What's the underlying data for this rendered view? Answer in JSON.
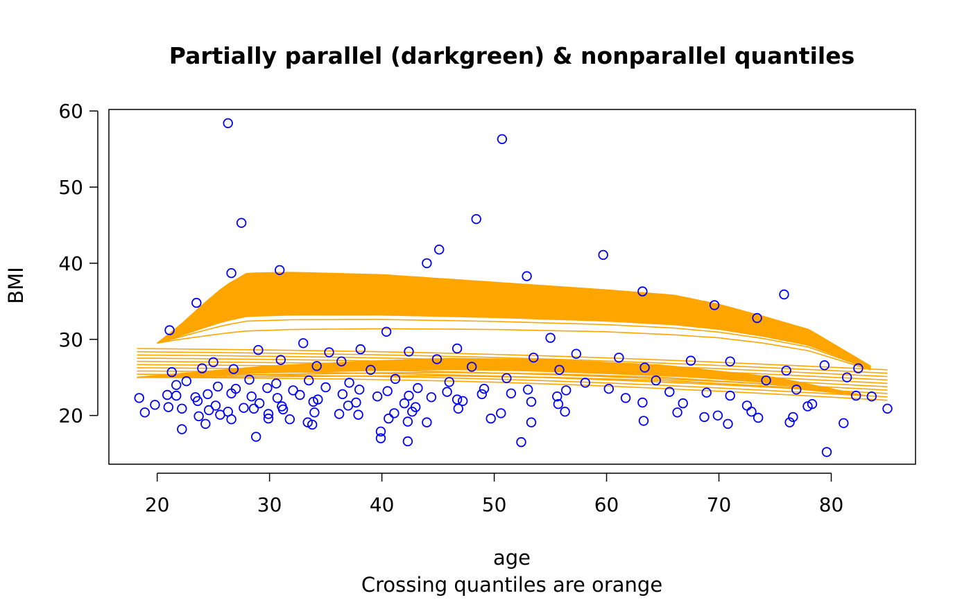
{
  "chart_data": {
    "type": "scatter",
    "title": "Partially parallel (darkgreen) & nonparallel quantiles",
    "xlabel": "age",
    "subtitle": "Crossing quantiles are orange",
    "ylabel": "BMI",
    "xlim": [
      15.7,
      87.5
    ],
    "ylim": [
      13.6,
      60.2
    ],
    "x_ticks": [
      20,
      30,
      40,
      50,
      60,
      70,
      80
    ],
    "y_ticks": [
      20,
      30,
      40,
      50,
      60
    ],
    "points_color": "#0000ff",
    "quantile_color": "#ffa500",
    "points": [
      [
        26.3,
        58.4
      ],
      [
        50.7,
        56.3
      ],
      [
        27.5,
        45.3
      ],
      [
        48.4,
        45.8
      ],
      [
        45.1,
        41.8
      ],
      [
        59.7,
        41.1
      ],
      [
        44.0,
        40.0
      ],
      [
        30.9,
        39.1
      ],
      [
        26.6,
        38.7
      ],
      [
        52.9,
        38.3
      ],
      [
        63.2,
        36.3
      ],
      [
        75.8,
        35.9
      ],
      [
        23.5,
        34.8
      ],
      [
        69.6,
        34.5
      ],
      [
        73.4,
        32.8
      ],
      [
        21.1,
        31.2
      ],
      [
        40.4,
        31.0
      ],
      [
        55.0,
        30.2
      ],
      [
        33.0,
        29.5
      ],
      [
        46.7,
        28.8
      ],
      [
        29.0,
        28.6
      ],
      [
        35.3,
        28.3
      ],
      [
        38.1,
        28.7
      ],
      [
        42.4,
        28.4
      ],
      [
        57.3,
        28.1
      ],
      [
        61.1,
        27.6
      ],
      [
        67.5,
        27.2
      ],
      [
        25.0,
        27.0
      ],
      [
        31.0,
        27.3
      ],
      [
        36.4,
        27.1
      ],
      [
        44.9,
        27.4
      ],
      [
        53.5,
        27.6
      ],
      [
        71.0,
        27.1
      ],
      [
        79.4,
        26.6
      ],
      [
        82.4,
        26.2
      ],
      [
        24.0,
        26.2
      ],
      [
        26.8,
        26.1
      ],
      [
        34.2,
        26.5
      ],
      [
        39.0,
        26.0
      ],
      [
        48.0,
        26.4
      ],
      [
        55.8,
        26.0
      ],
      [
        63.4,
        26.3
      ],
      [
        76.0,
        25.9
      ],
      [
        21.3,
        25.7
      ],
      [
        22.6,
        24.5
      ],
      [
        28.2,
        24.7
      ],
      [
        30.6,
        24.2
      ],
      [
        33.5,
        24.6
      ],
      [
        37.1,
        24.3
      ],
      [
        41.2,
        24.8
      ],
      [
        46.0,
        24.4
      ],
      [
        51.1,
        24.9
      ],
      [
        58.1,
        24.3
      ],
      [
        64.4,
        24.6
      ],
      [
        74.2,
        24.6
      ],
      [
        81.4,
        25.0
      ],
      [
        21.7,
        24.0
      ],
      [
        25.4,
        23.8
      ],
      [
        27.0,
        23.5
      ],
      [
        29.8,
        23.6
      ],
      [
        32.1,
        23.3
      ],
      [
        35.0,
        23.7
      ],
      [
        38.0,
        23.4
      ],
      [
        40.5,
        23.2
      ],
      [
        43.2,
        23.6
      ],
      [
        45.8,
        23.1
      ],
      [
        49.1,
        23.5
      ],
      [
        53.0,
        23.4
      ],
      [
        56.4,
        23.3
      ],
      [
        60.2,
        23.5
      ],
      [
        65.6,
        23.1
      ],
      [
        68.9,
        23.0
      ],
      [
        76.9,
        23.4
      ],
      [
        18.4,
        22.3
      ],
      [
        20.9,
        22.7
      ],
      [
        21.7,
        22.6
      ],
      [
        23.4,
        22.4
      ],
      [
        24.5,
        22.8
      ],
      [
        26.6,
        22.9
      ],
      [
        28.4,
        22.5
      ],
      [
        30.7,
        22.3
      ],
      [
        32.7,
        22.7
      ],
      [
        34.3,
        22.1
      ],
      [
        36.5,
        22.8
      ],
      [
        39.6,
        22.5
      ],
      [
        42.4,
        22.6
      ],
      [
        44.4,
        22.4
      ],
      [
        46.7,
        22.1
      ],
      [
        48.9,
        22.8
      ],
      [
        51.5,
        22.9
      ],
      [
        55.6,
        22.5
      ],
      [
        61.7,
        22.3
      ],
      [
        71.0,
        22.6
      ],
      [
        82.2,
        22.6
      ],
      [
        83.6,
        22.5
      ],
      [
        19.8,
        21.4
      ],
      [
        21.0,
        21.1
      ],
      [
        23.6,
        21.9
      ],
      [
        25.2,
        21.3
      ],
      [
        27.7,
        21.0
      ],
      [
        29.1,
        21.6
      ],
      [
        31.1,
        21.2
      ],
      [
        33.9,
        21.8
      ],
      [
        37.0,
        21.3
      ],
      [
        37.7,
        21.7
      ],
      [
        42.0,
        21.6
      ],
      [
        43.0,
        21.1
      ],
      [
        47.2,
        21.9
      ],
      [
        53.3,
        21.8
      ],
      [
        55.7,
        21.5
      ],
      [
        63.2,
        21.7
      ],
      [
        66.8,
        21.6
      ],
      [
        72.5,
        21.3
      ],
      [
        77.9,
        21.2
      ],
      [
        78.3,
        21.5
      ],
      [
        18.9,
        20.4
      ],
      [
        22.2,
        20.9
      ],
      [
        24.6,
        20.7
      ],
      [
        26.3,
        20.5
      ],
      [
        28.6,
        20.9
      ],
      [
        29.9,
        20.2
      ],
      [
        31.2,
        20.8
      ],
      [
        34.0,
        20.4
      ],
      [
        36.2,
        20.2
      ],
      [
        37.9,
        20.1
      ],
      [
        41.1,
        20.3
      ],
      [
        42.7,
        20.5
      ],
      [
        46.8,
        20.9
      ],
      [
        50.6,
        20.3
      ],
      [
        56.3,
        20.5
      ],
      [
        66.3,
        20.4
      ],
      [
        69.9,
        20.0
      ],
      [
        72.9,
        20.5
      ],
      [
        76.6,
        19.8
      ],
      [
        85.0,
        20.9
      ],
      [
        23.7,
        19.9
      ],
      [
        25.6,
        20.1
      ],
      [
        26.6,
        19.5
      ],
      [
        29.9,
        19.6
      ],
      [
        31.8,
        19.5
      ],
      [
        33.4,
        19.1
      ],
      [
        33.8,
        18.8
      ],
      [
        40.6,
        19.6
      ],
      [
        42.3,
        19.2
      ],
      [
        44.0,
        19.1
      ],
      [
        49.7,
        19.6
      ],
      [
        53.3,
        19.1
      ],
      [
        63.3,
        19.3
      ],
      [
        68.7,
        19.8
      ],
      [
        73.5,
        19.7
      ],
      [
        70.8,
        18.9
      ],
      [
        76.3,
        19.1
      ],
      [
        81.1,
        19.0
      ],
      [
        22.2,
        18.2
      ],
      [
        24.3,
        18.9
      ],
      [
        28.8,
        17.2
      ],
      [
        39.9,
        17.9
      ],
      [
        39.9,
        17.0
      ],
      [
        42.3,
        16.6
      ],
      [
        52.4,
        16.5
      ],
      [
        79.6,
        15.2
      ]
    ],
    "upper_quantiles": {
      "start_x": 20.0,
      "end_x": 83.5,
      "count": 20,
      "profile_x": [
        20.0,
        22.0,
        24.0,
        26.0,
        28.0,
        32.0,
        40.0,
        50.0,
        60.0,
        66.0,
        70.0,
        74.0,
        78.0,
        83.5
      ],
      "low_curve": [
        29.5,
        30.0,
        30.4,
        30.8,
        31.1,
        31.3,
        31.4,
        31.3,
        31.0,
        30.6,
        30.2,
        29.5,
        28.5,
        26.0
      ],
      "high_curve": [
        29.5,
        31.8,
        34.5,
        37.0,
        38.7,
        38.8,
        38.5,
        37.5,
        36.5,
        35.8,
        34.6,
        33.0,
        31.3,
        26.5
      ]
    },
    "lower_quantiles": {
      "start_x": 18.2,
      "end_x": 85.0,
      "count": 10,
      "start_range": [
        25.0,
        28.8
      ],
      "end_range": [
        22.0,
        26.0
      ]
    },
    "spindle_quantiles": {
      "start_x": 18.2,
      "end_x": 83.0,
      "start_y": 25.0,
      "end_y": 22.6,
      "count": 6,
      "profile_x": [
        18.2,
        30.0,
        40.0,
        46.0,
        55.0,
        65.0,
        75.0,
        83.0
      ],
      "upper": [
        25.0,
        26.5,
        27.2,
        27.5,
        27.3,
        26.6,
        25.0,
        22.6
      ],
      "lower": [
        25.0,
        25.1,
        25.2,
        25.2,
        25.0,
        24.6,
        23.8,
        22.6
      ]
    }
  }
}
